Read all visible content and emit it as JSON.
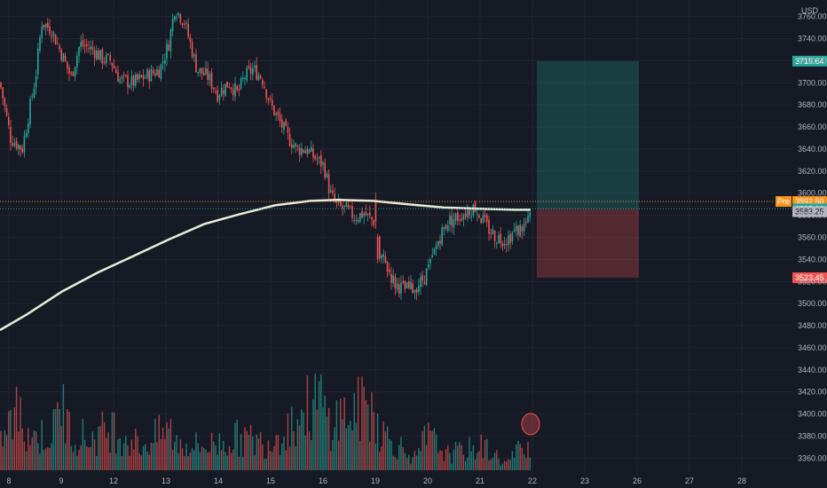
{
  "colors": {
    "background": "#161a25",
    "grid": "#222634",
    "up": "#26a69a",
    "down": "#ef5350",
    "ma_line": "#e9eddb",
    "axis_text": "#b2b5be",
    "target_zone": "#1d4a4a",
    "stop_zone": "#4a2329",
    "pre_badge": "#f7931a",
    "last_price_badge": "#26a69a",
    "ref_price_badge": "#b2b5be"
  },
  "header": {
    "currency": "USD"
  },
  "chart_data": {
    "type": "candlestick",
    "title": "",
    "ylim": [
      3345,
      3775
    ],
    "y_ticks": [
      "3760.00",
      "3740.00",
      "3720.00",
      "3700.00",
      "3680.00",
      "3660.00",
      "3640.00",
      "3620.00",
      "3600.00",
      "3580.00",
      "3560.00",
      "3540.00",
      "3520.00",
      "3500.00",
      "3480.00",
      "3460.00",
      "3440.00",
      "3420.00",
      "3400.00",
      "3380.00",
      "3360.00"
    ],
    "x_ticks": [
      "8",
      "9",
      "12",
      "13",
      "14",
      "15",
      "16",
      "19",
      "20",
      "21",
      "22",
      "23",
      "26",
      "27",
      "28"
    ],
    "grid": true,
    "moving_average": [
      [
        0,
        3476
      ],
      [
        30,
        3490
      ],
      [
        70,
        3511
      ],
      [
        110,
        3528
      ],
      [
        150,
        3543
      ],
      [
        190,
        3558
      ],
      [
        230,
        3572
      ],
      [
        270,
        3581
      ],
      [
        310,
        3589
      ],
      [
        350,
        3593
      ],
      [
        380,
        3594
      ],
      [
        420,
        3593
      ],
      [
        460,
        3590
      ],
      [
        500,
        3587
      ],
      [
        540,
        3586
      ],
      [
        580,
        3585
      ],
      [
        598,
        3585
      ]
    ],
    "candle_path": [
      [
        0,
        3700
      ],
      [
        12,
        3650
      ],
      [
        25,
        3640
      ],
      [
        40,
        3705
      ],
      [
        47,
        3755
      ],
      [
        58,
        3748
      ],
      [
        70,
        3725
      ],
      [
        80,
        3705
      ],
      [
        90,
        3735
      ],
      [
        105,
        3730
      ],
      [
        115,
        3722
      ],
      [
        125,
        3720
      ],
      [
        135,
        3703
      ],
      [
        150,
        3700
      ],
      [
        165,
        3706
      ],
      [
        180,
        3712
      ],
      [
        190,
        3735
      ],
      [
        197,
        3768
      ],
      [
        208,
        3755
      ],
      [
        222,
        3712
      ],
      [
        235,
        3705
      ],
      [
        245,
        3690
      ],
      [
        258,
        3700
      ],
      [
        268,
        3690
      ],
      [
        275,
        3705
      ],
      [
        285,
        3712
      ],
      [
        295,
        3705
      ],
      [
        305,
        3680
      ],
      [
        315,
        3665
      ],
      [
        325,
        3650
      ],
      [
        335,
        3640
      ],
      [
        345,
        3640
      ],
      [
        355,
        3632
      ],
      [
        365,
        3625
      ],
      [
        372,
        3600
      ],
      [
        380,
        3588
      ],
      [
        390,
        3585
      ],
      [
        400,
        3578
      ],
      [
        410,
        3582
      ],
      [
        418,
        3576
      ],
      [
        424,
        3574
      ],
      [
        425,
        3548
      ],
      [
        435,
        3535
      ],
      [
        445,
        3518
      ],
      [
        455,
        3513
      ],
      [
        465,
        3513
      ],
      [
        475,
        3520
      ],
      [
        485,
        3535
      ],
      [
        495,
        3560
      ],
      [
        505,
        3575
      ],
      [
        515,
        3578
      ],
      [
        525,
        3583
      ],
      [
        535,
        3588
      ],
      [
        542,
        3578
      ],
      [
        550,
        3568
      ],
      [
        560,
        3560
      ],
      [
        570,
        3558
      ],
      [
        580,
        3565
      ],
      [
        590,
        3570
      ],
      [
        596,
        3574
      ],
      [
        598,
        3585
      ]
    ],
    "volume_profile": [
      [
        0,
        0.25
      ],
      [
        12,
        0.42
      ],
      [
        15,
        0.55
      ],
      [
        40,
        0.3
      ],
      [
        60,
        0.35
      ],
      [
        70,
        0.68
      ],
      [
        75,
        0.4
      ],
      [
        100,
        0.28
      ],
      [
        127,
        0.4
      ],
      [
        135,
        0.35
      ],
      [
        160,
        0.22
      ],
      [
        190,
        0.38
      ],
      [
        200,
        0.25
      ],
      [
        230,
        0.22
      ],
      [
        270,
        0.3
      ],
      [
        300,
        0.25
      ],
      [
        360,
        0.65
      ],
      [
        370,
        0.45
      ],
      [
        420,
        0.6
      ],
      [
        430,
        0.35
      ],
      [
        470,
        0.1
      ],
      [
        480,
        0.32
      ],
      [
        505,
        0.15
      ],
      [
        545,
        0.22
      ],
      [
        570,
        0.06
      ],
      [
        598,
        0.3
      ]
    ],
    "position_tool": {
      "target_price": 3719.64,
      "entry_price": 3585.9,
      "stop_price": 3523.45
    },
    "price_labels": {
      "pre_label": "Pre",
      "pre_price": "3592.50",
      "last_price": "3585.90",
      "ref_price": "3583.25",
      "target_price": "3719.64",
      "stop_price": "3523.45"
    },
    "volume_highlight_x": 598
  }
}
